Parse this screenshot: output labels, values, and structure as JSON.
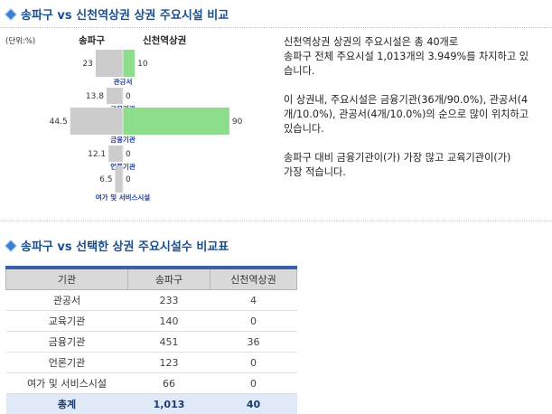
{
  "section1": {
    "title": "송파구 vs 신천역상권 상권 주요시설 비교"
  },
  "section2": {
    "title": "송파구 vs 선택한 상권 주요시설수 비교표"
  },
  "chart_data": {
    "type": "bar",
    "unit_label": "(단위:%)",
    "series": [
      {
        "name": "송파구",
        "values": [
          23,
          13.8,
          44.5,
          12.1,
          6.5
        ],
        "color": "#cccccc"
      },
      {
        "name": "신천역상권",
        "values": [
          10,
          0,
          90,
          0,
          0
        ],
        "color": "#8cde8c"
      }
    ],
    "categories": [
      "관공서",
      "교육기관",
      "금융기관",
      "언론기관",
      "여가 및 서비스시설"
    ],
    "value_labels_left": [
      "23",
      "13.8",
      "44.5",
      "12.1",
      "6.5"
    ],
    "value_labels_right": [
      "10",
      "0",
      "90",
      "0",
      "0"
    ]
  },
  "description": {
    "paragraphs": [
      "신천역상권 상권의 주요시설은 총 40개로\n송파구 전체 주요시설 1,013개의 3.949%를 차지하고 있\n습니다.",
      "이 상권내, 주요시설은 금융기관(36개/90.0%), 관공서(4\n개/10.0%), 관공서(4개/10.0%)의 순으로 많이 위치하고\n있습니다.",
      "송파구 대비 금융기관이(가) 가장 많고 교육기관이(가)\n가장 적습니다."
    ]
  },
  "table": {
    "headers": [
      "기관",
      "송파구",
      "신천역상권"
    ],
    "rows": [
      [
        "관공서",
        "233",
        "4"
      ],
      [
        "교육기관",
        "140",
        "0"
      ],
      [
        "금융기관",
        "451",
        "36"
      ],
      [
        "언론기관",
        "123",
        "0"
      ],
      [
        "여가 및 서비스시설",
        "66",
        "0"
      ]
    ],
    "total": [
      "총계",
      "1,013",
      "40"
    ]
  }
}
